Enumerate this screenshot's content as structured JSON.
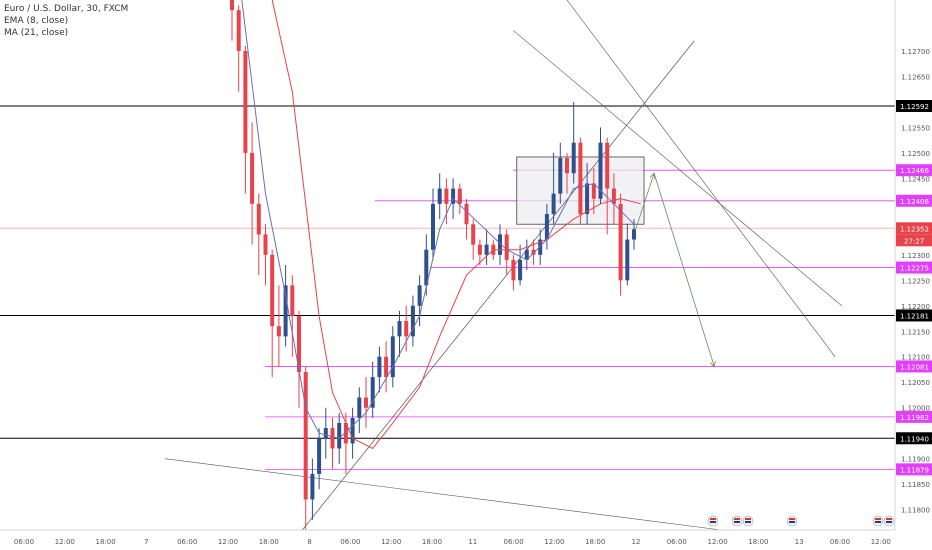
{
  "legend": {
    "symbol_line": "Euro / U.S. Dollar, 30, FXCM",
    "ema_line": "EMA (8, close)",
    "ma_line": "MA (21, close)"
  },
  "colors": {
    "up": "#2f4f8f",
    "down": "#e8424a",
    "ema": "#6a6fb5",
    "ma": "#e8424a",
    "level_black": "#000000",
    "level_magenta": "#e040fb",
    "trend": "#555555",
    "box_fill": "#ececf0",
    "box_stroke": "#444444",
    "arrow": "#6b8a5a"
  },
  "chart_data": {
    "type": "candlestick",
    "ylim": [
      1.1176,
      1.128
    ],
    "y_ticks": [
      "1.12700",
      "1.12650",
      "1.12550",
      "1.12500",
      "1.12450",
      "1.12300",
      "1.12250",
      "1.12200",
      "1.12150",
      "1.12100",
      "1.12050",
      "1.12000",
      "1.11900",
      "1.11850",
      "1.11800"
    ],
    "x_ticks": [
      "06:00",
      "12:00",
      "18:00",
      "7",
      "06:00",
      "12:00",
      "18:00",
      "8",
      "06:00",
      "12:00",
      "18:00",
      "11",
      "06:00",
      "12:00",
      "18:00",
      "12",
      "06:00",
      "12:00",
      "18:00",
      "13",
      "06:00",
      "12:00"
    ],
    "levels": [
      {
        "label": "1.12592",
        "value": 1.12592,
        "style": "black"
      },
      {
        "label": "1.12466",
        "value": 1.12466,
        "style": "magenta"
      },
      {
        "label": "1.12406",
        "value": 1.12406,
        "style": "magenta"
      },
      {
        "label": "1.12352",
        "value": 1.12352,
        "style": "price"
      },
      {
        "label": "1.12275",
        "value": 1.12275,
        "style": "magenta"
      },
      {
        "label": "1.12181",
        "value": 1.12181,
        "style": "black"
      },
      {
        "label": "1.12081",
        "value": 1.12081,
        "style": "magenta"
      },
      {
        "label": "1.11982",
        "value": 1.11982,
        "style": "magenta"
      },
      {
        "label": "1.11940",
        "value": 1.1194,
        "style": "black"
      },
      {
        "label": "1.11879",
        "value": 1.11879,
        "style": "magenta"
      }
    ],
    "countdown": "27:27",
    "candles": [
      [
        5,
        1.128,
        1.1278,
        1.1281,
        1.1272
      ],
      [
        6,
        1.1278,
        1.127,
        1.1279,
        1.1262
      ],
      [
        7,
        1.127,
        1.125,
        1.1271,
        1.1242
      ],
      [
        8,
        1.125,
        1.124,
        1.1256,
        1.1232
      ],
      [
        9,
        1.124,
        1.1234,
        1.1242,
        1.1226
      ],
      [
        10,
        1.1234,
        1.123,
        1.1236,
        1.1224
      ],
      [
        11,
        1.123,
        1.1216,
        1.1231,
        1.1206
      ],
      [
        12,
        1.1216,
        1.1214,
        1.1224,
        1.1208
      ],
      [
        13,
        1.1214,
        1.1224,
        1.1228,
        1.1212
      ],
      [
        14,
        1.1224,
        1.1218,
        1.1226,
        1.121
      ],
      [
        15,
        1.1218,
        1.1207,
        1.1219,
        1.12
      ],
      [
        16,
        1.1207,
        1.1182,
        1.1208,
        1.1176
      ],
      [
        17,
        1.1182,
        1.1187,
        1.119,
        1.1178
      ],
      [
        18,
        1.1187,
        1.1194,
        1.1196,
        1.1184
      ],
      [
        19,
        1.1194,
        1.1196,
        1.12,
        1.119
      ],
      [
        20,
        1.1196,
        1.1192,
        1.1198,
        1.1188
      ],
      [
        21,
        1.1192,
        1.1197,
        1.1199,
        1.1189
      ],
      [
        22,
        1.1197,
        1.1193,
        1.1199,
        1.1187
      ],
      [
        23,
        1.1193,
        1.1198,
        1.12,
        1.119
      ],
      [
        24,
        1.1198,
        1.1202,
        1.1204,
        1.1195
      ],
      [
        25,
        1.1202,
        1.12,
        1.1206,
        1.1196
      ],
      [
        26,
        1.12,
        1.1206,
        1.1209,
        1.1198
      ],
      [
        27,
        1.1206,
        1.121,
        1.1212,
        1.1203
      ],
      [
        28,
        1.121,
        1.1206,
        1.1213,
        1.1203
      ],
      [
        29,
        1.1206,
        1.1214,
        1.1216,
        1.1204
      ],
      [
        30,
        1.1214,
        1.1217,
        1.1219,
        1.121
      ],
      [
        31,
        1.1217,
        1.1214,
        1.122,
        1.1211
      ],
      [
        32,
        1.1214,
        1.122,
        1.1222,
        1.1212
      ],
      [
        33,
        1.122,
        1.1224,
        1.1226,
        1.1216
      ],
      [
        34,
        1.1224,
        1.1231,
        1.1234,
        1.1222
      ],
      [
        35,
        1.1231,
        1.124,
        1.1243,
        1.1229
      ],
      [
        36,
        1.124,
        1.1243,
        1.1246,
        1.1237
      ],
      [
        37,
        1.1243,
        1.124,
        1.1245,
        1.1236
      ],
      [
        38,
        1.124,
        1.1243,
        1.1245,
        1.1237
      ],
      [
        39,
        1.1243,
        1.124,
        1.1244,
        1.1238
      ],
      [
        40,
        1.124,
        1.1236,
        1.1241,
        1.1233
      ],
      [
        41,
        1.1236,
        1.1232,
        1.1237,
        1.1229
      ],
      [
        42,
        1.1232,
        1.123,
        1.1233,
        1.1228
      ],
      [
        43,
        1.123,
        1.1232,
        1.1235,
        1.1228
      ],
      [
        44,
        1.1232,
        1.123,
        1.1233,
        1.1229
      ],
      [
        45,
        1.123,
        1.1234,
        1.1236,
        1.1228
      ],
      [
        46,
        1.1234,
        1.1229,
        1.1235,
        1.1226
      ],
      [
        47,
        1.1229,
        1.1225,
        1.123,
        1.1223
      ],
      [
        48,
        1.1225,
        1.1229,
        1.1232,
        1.1224
      ],
      [
        49,
        1.1229,
        1.1231,
        1.1233,
        1.1227
      ],
      [
        50,
        1.1231,
        1.123,
        1.1233,
        1.1228
      ],
      [
        51,
        1.123,
        1.1233,
        1.1235,
        1.1228
      ],
      [
        52,
        1.1233,
        1.1238,
        1.124,
        1.1231
      ],
      [
        53,
        1.1238,
        1.1242,
        1.125,
        1.1236
      ],
      [
        54,
        1.1242,
        1.1249,
        1.1252,
        1.124
      ],
      [
        55,
        1.1249,
        1.1246,
        1.125,
        1.1242
      ],
      [
        56,
        1.1246,
        1.1252,
        1.126,
        1.1244
      ],
      [
        57,
        1.1252,
        1.1238,
        1.1253,
        1.1236
      ],
      [
        58,
        1.1238,
        1.1244,
        1.1248,
        1.1236
      ],
      [
        59,
        1.1244,
        1.1241,
        1.1247,
        1.1238
      ],
      [
        60,
        1.1241,
        1.1252,
        1.1255,
        1.124
      ],
      [
        61,
        1.1252,
        1.1243,
        1.1253,
        1.1234
      ],
      [
        62,
        1.1243,
        1.124,
        1.1246,
        1.1236
      ],
      [
        63,
        1.124,
        1.1225,
        1.1242,
        1.1222
      ],
      [
        64,
        1.1225,
        1.1233,
        1.1236,
        1.1224
      ],
      [
        65,
        1.1233,
        1.1235,
        1.1237,
        1.1231
      ]
    ],
    "ema_8": [
      [
        6,
        1.1285
      ],
      [
        10,
        1.1242
      ],
      [
        13,
        1.1222
      ],
      [
        16,
        1.12
      ],
      [
        18,
        1.1195
      ],
      [
        21,
        1.1194
      ],
      [
        25,
        1.1199
      ],
      [
        29,
        1.1208
      ],
      [
        33,
        1.1218
      ],
      [
        36,
        1.1235
      ],
      [
        38,
        1.1241
      ],
      [
        42,
        1.1236
      ],
      [
        46,
        1.1231
      ],
      [
        49,
        1.1229
      ],
      [
        52,
        1.1233
      ],
      [
        56,
        1.1243
      ],
      [
        59,
        1.1244
      ],
      [
        62,
        1.124
      ],
      [
        65,
        1.1236
      ]
    ],
    "ma_21": [
      [
        11,
        1.128
      ],
      [
        14,
        1.1262
      ],
      [
        16,
        1.124
      ],
      [
        18,
        1.1218
      ],
      [
        20,
        1.1203
      ],
      [
        23,
        1.1194
      ],
      [
        26,
        1.1192
      ],
      [
        29,
        1.1197
      ],
      [
        33,
        1.1204
      ],
      [
        36,
        1.1214
      ],
      [
        40,
        1.1226
      ],
      [
        44,
        1.1231
      ],
      [
        48,
        1.1231
      ],
      [
        52,
        1.1233
      ],
      [
        56,
        1.1237
      ],
      [
        60,
        1.124
      ],
      [
        63,
        1.1241
      ],
      [
        66,
        1.124
      ]
    ],
    "drawings": {
      "box": {
        "i0": 47.5,
        "i1": 66.5,
        "p0": 1.12492,
        "p1": 1.1236
      },
      "rising_trend": [
        [
          15.5,
          1.1176
        ],
        [
          74,
          1.1272
        ]
      ],
      "desc_line_1": [
        [
          47,
          1.1274
        ],
        [
          96,
          1.122
        ]
      ],
      "desc_line_2": [
        [
          55,
          1.128
        ],
        [
          95,
          1.121
        ]
      ],
      "long_desc": [
        [
          -5,
          1.119
        ],
        [
          78,
          1.1176
        ]
      ],
      "arrow_up": [
        [
          65,
          1.1234
        ],
        [
          68,
          1.1246
        ]
      ],
      "arrow_down": [
        [
          68,
          1.1246
        ],
        [
          77,
          1.1208
        ]
      ]
    }
  }
}
